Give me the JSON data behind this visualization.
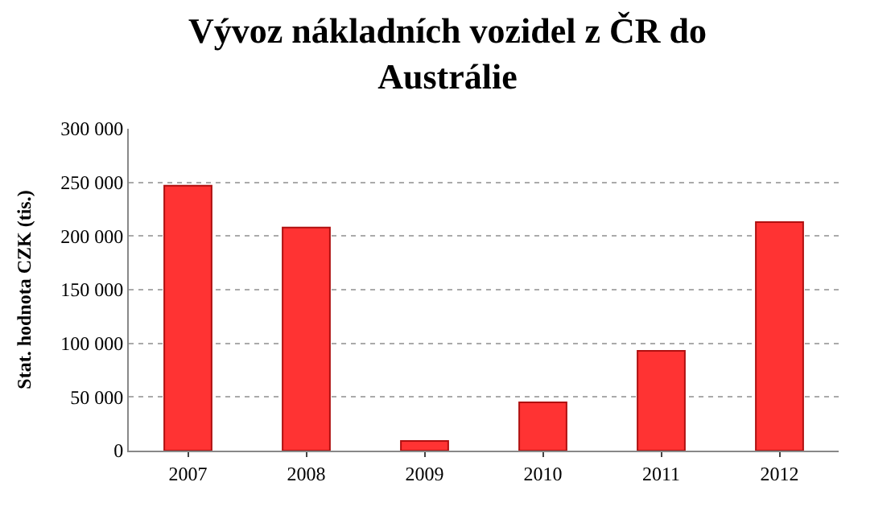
{
  "chart_data": {
    "type": "bar",
    "title": "Vývoz nákladních vozidel z ČR do Austrálie",
    "ylabel": "Stat. hodnota CZK (tis.)",
    "categories": [
      "2007",
      "2008",
      "2009",
      "2010",
      "2011",
      "2012"
    ],
    "values": [
      247000,
      208000,
      9000,
      45000,
      93000,
      213000
    ],
    "color": "#ff3333",
    "ylim": [
      0,
      300000
    ],
    "yticks": [
      {
        "value": 0,
        "label": "0"
      },
      {
        "value": 50000,
        "label": "50 000"
      },
      {
        "value": 100000,
        "label": "100 000"
      },
      {
        "value": 150000,
        "label": "150 000"
      },
      {
        "value": 200000,
        "label": "200 000"
      },
      {
        "value": 250000,
        "label": "250 000"
      },
      {
        "value": 300000,
        "label": "300 000"
      }
    ],
    "grid": "y"
  }
}
